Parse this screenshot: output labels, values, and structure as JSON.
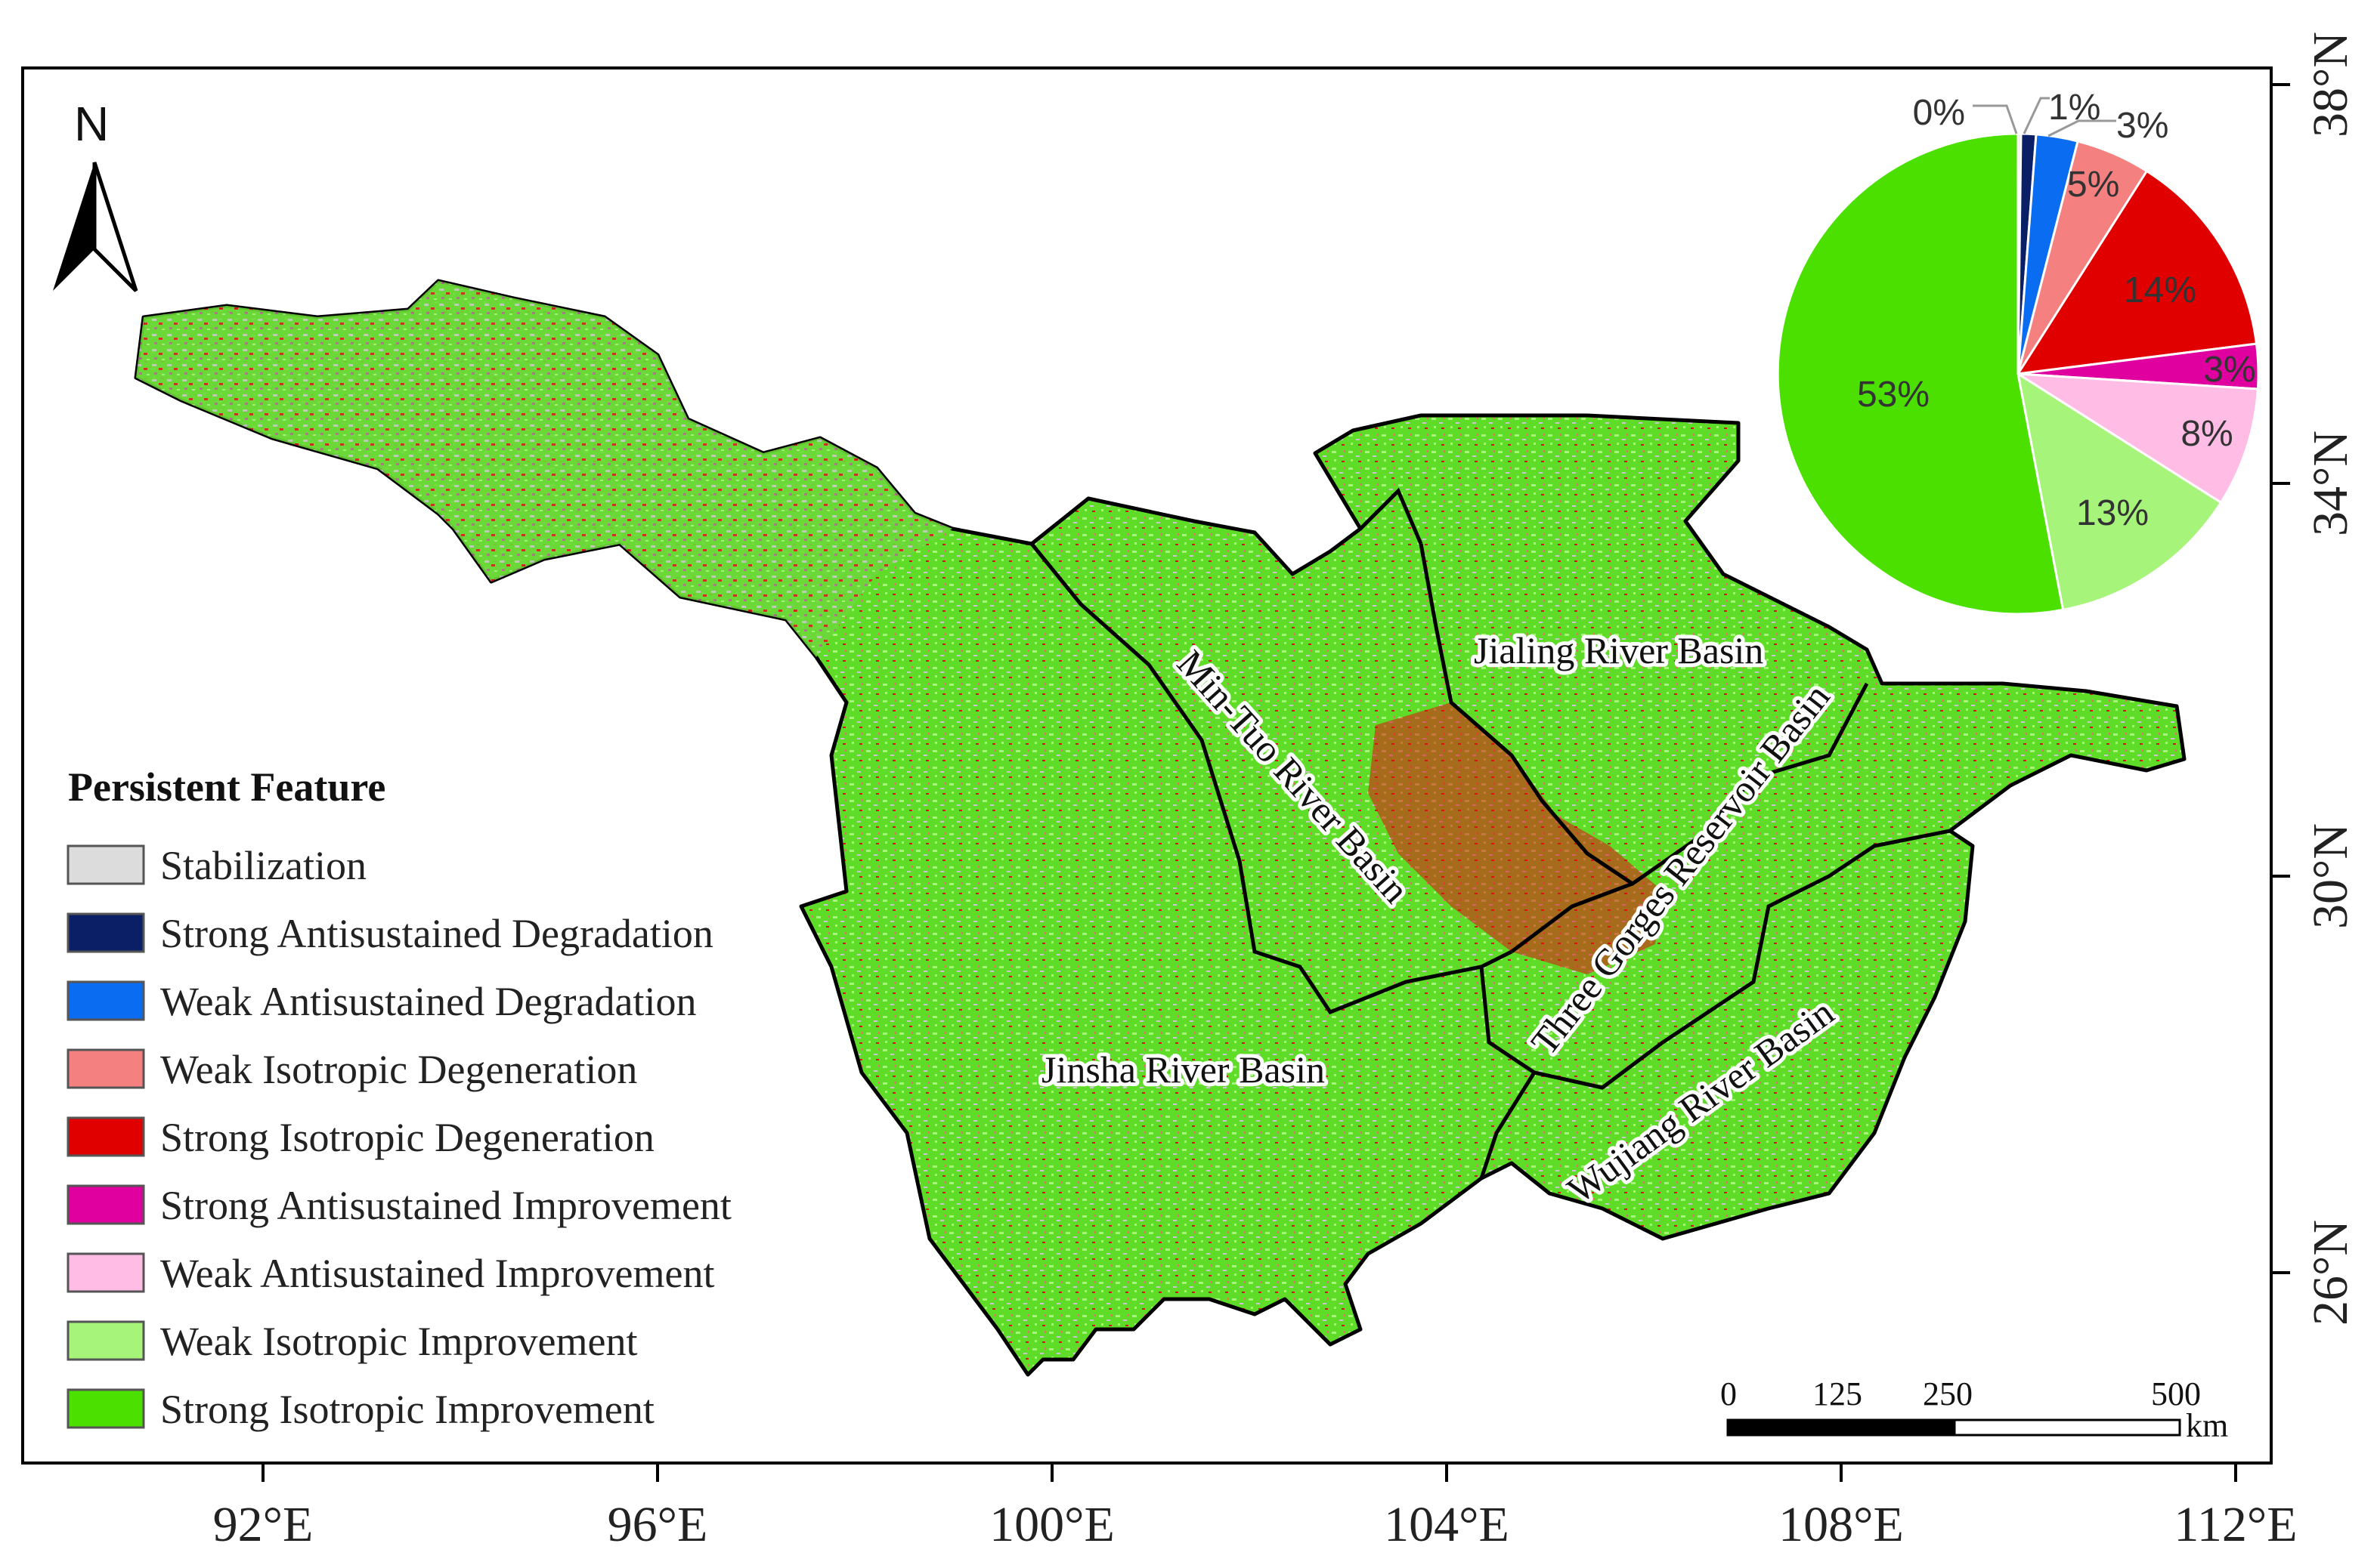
{
  "north_arrow": {
    "label": "N"
  },
  "axes": {
    "x_ticks": [
      "92°E",
      "96°E",
      "100°E",
      "104°E",
      "108°E",
      "112°E"
    ],
    "y_ticks": [
      "38°N",
      "34°N",
      "30°N",
      "26°N"
    ]
  },
  "basins": [
    {
      "name": "Jialing River Basin"
    },
    {
      "name": "Min-Tuo River Basin"
    },
    {
      "name": "Three Gorges Reservoir Basin"
    },
    {
      "name": "Jinsha River Basin"
    },
    {
      "name": "Wujiang River Basin"
    }
  ],
  "legend": {
    "title": "Persistent Feature",
    "items": [
      {
        "label": "Stabilization",
        "color": "#dcdcdc"
      },
      {
        "label": "Strong Antisustained Degradation",
        "color": "#0b1f66"
      },
      {
        "label": "Weak Antisustained Degradation",
        "color": "#0a6cf0"
      },
      {
        "label": "Weak Isotropic Degeneration",
        "color": "#f58080"
      },
      {
        "label": "Strong Isotropic Degeneration",
        "color": "#e00000"
      },
      {
        "label": "Strong Antisustained Improvement",
        "color": "#e000a0"
      },
      {
        "label": "Weak Antisustained Improvement",
        "color": "#ffbde6"
      },
      {
        "label": "Weak Isotropic Improvement",
        "color": "#a6f57a"
      },
      {
        "label": "Strong  Isotropic Improvement",
        "color": "#4ce000"
      }
    ]
  },
  "pie": {
    "slices": [
      {
        "label": "0%",
        "value": 0.2,
        "color": "#dcdcdc"
      },
      {
        "label": "1%",
        "value": 1.0,
        "color": "#0b1f66"
      },
      {
        "label": "3%",
        "value": 2.8,
        "color": "#0a6cf0"
      },
      {
        "label": "5%",
        "value": 5.0,
        "color": "#f58080"
      },
      {
        "label": "14%",
        "value": 14.0,
        "color": "#e00000"
      },
      {
        "label": "3%",
        "value": 3.0,
        "color": "#e000a0"
      },
      {
        "label": "8%",
        "value": 8.0,
        "color": "#ffbde6"
      },
      {
        "label": "13%",
        "value": 13.0,
        "color": "#a6f57a"
      },
      {
        "label": "53%",
        "value": 53.0,
        "color": "#4ce000"
      }
    ]
  },
  "scale_bar": {
    "ticks": [
      "0",
      "125",
      "250",
      "500"
    ],
    "unit": "km"
  }
}
